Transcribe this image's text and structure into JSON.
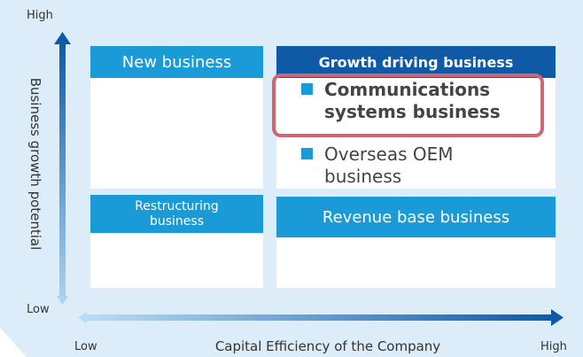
{
  "axes": {
    "y_high": "High",
    "y_low": "Low",
    "y_label": "Business growth potential",
    "x_low": "Low",
    "x_label": "Capital Efficiency of the Company",
    "x_high": "High"
  },
  "quadrants": [
    {
      "title": "New business",
      "items": []
    },
    {
      "title": "Growth driving business",
      "items": [
        "Communications systems business",
        "Overseas OEM business"
      ]
    },
    {
      "title": "Restructuring business",
      "items": []
    },
    {
      "title": "Revenue base business",
      "items": []
    }
  ]
}
